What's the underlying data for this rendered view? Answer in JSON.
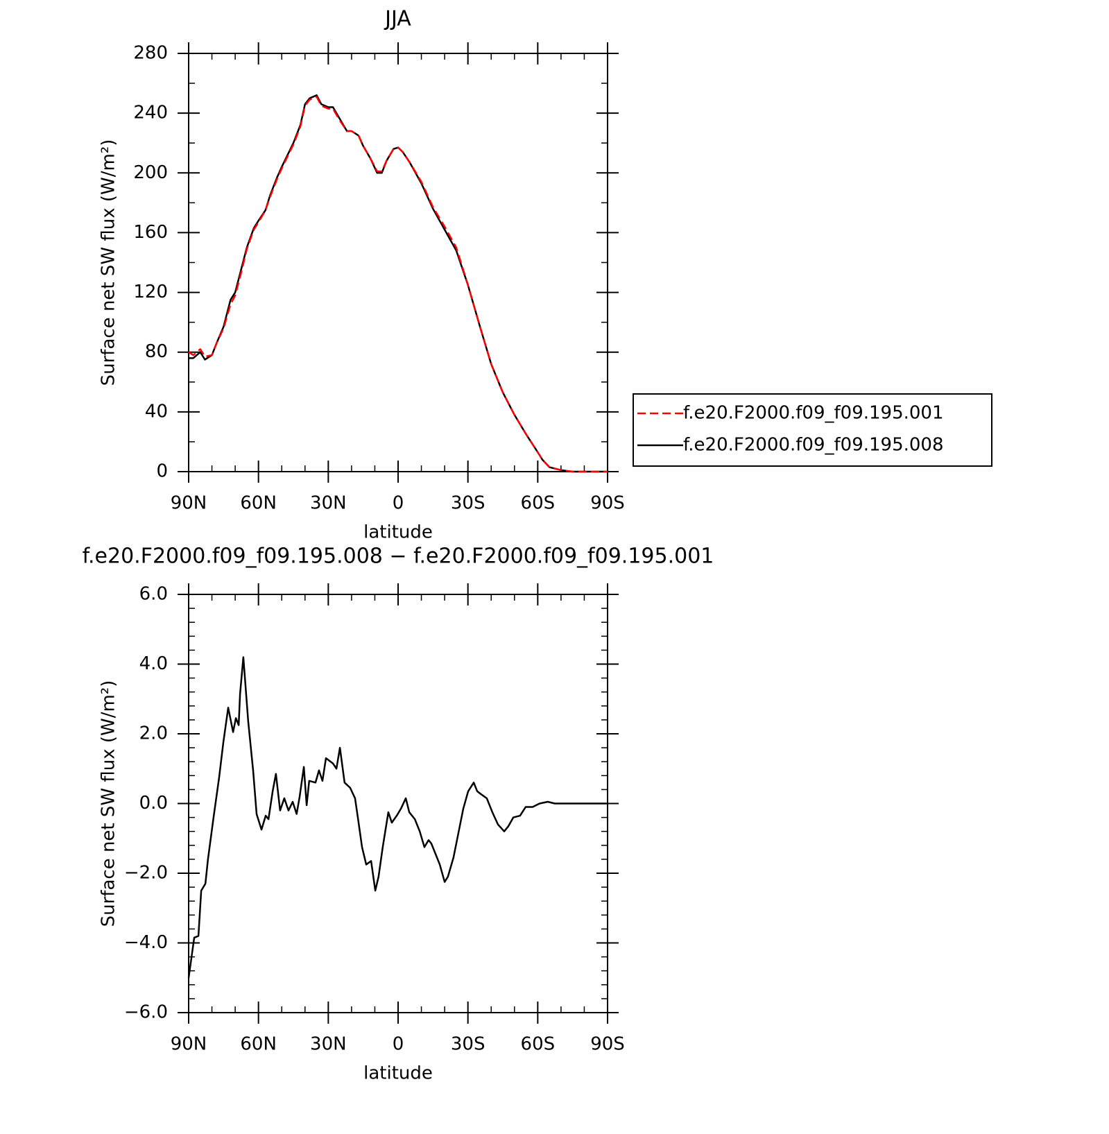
{
  "chart_data": [
    {
      "type": "line",
      "title": "JJA",
      "xlabel": "latitude",
      "ylabel": "Surface net SW flux (W/m²)",
      "x": [
        90,
        88,
        85,
        83,
        80,
        78,
        75,
        72,
        70,
        67,
        65,
        62,
        60,
        57,
        55,
        52,
        50,
        45,
        42,
        40,
        38,
        35,
        33,
        30,
        28,
        25,
        22,
        20,
        17,
        15,
        12,
        9,
        7,
        5,
        2,
        0,
        -2,
        -5,
        -10,
        -15,
        -20,
        -25,
        -30,
        -35,
        -40,
        -45,
        -50,
        -55,
        -60,
        -62,
        -65,
        -70,
        -75,
        -80,
        -85,
        -90
      ],
      "series": [
        {
          "name": "f.e20.F2000.f09_f09.195.001",
          "color": "#ff0000",
          "linestyle": "dashed",
          "values": [
            80,
            78,
            82,
            77,
            78,
            86,
            96,
            112,
            118,
            136,
            149,
            162,
            167,
            175,
            184,
            196,
            203,
            219,
            231,
            245,
            249,
            251,
            245,
            243,
            243,
            235,
            228,
            228,
            225,
            218,
            210,
            201,
            201,
            208,
            216,
            217,
            214,
            207,
            194,
            177,
            164,
            150,
            125,
            98,
            72,
            53,
            38,
            25,
            13,
            8,
            3,
            1,
            0,
            0,
            0,
            0
          ]
        },
        {
          "name": "f.e20.F2000.f09_f09.195.008",
          "color": "#000000",
          "linestyle": "solid",
          "values": [
            76,
            76,
            80,
            75,
            78,
            86,
            97,
            115,
            120,
            138,
            150,
            163,
            168,
            175,
            185,
            197,
            204,
            220,
            232,
            246,
            250,
            252,
            246,
            244,
            244,
            236,
            228,
            228,
            225,
            218,
            210,
            200,
            200,
            208,
            216,
            217,
            214,
            207,
            193,
            176,
            162,
            148,
            125,
            98,
            72,
            53,
            38,
            25,
            13,
            8,
            3,
            1,
            0,
            0,
            0,
            0
          ]
        }
      ],
      "xlim": [
        90,
        -90
      ],
      "xticks": [
        {
          "value": 90,
          "label": "90N"
        },
        {
          "value": 60,
          "label": "60N"
        },
        {
          "value": 30,
          "label": "30N"
        },
        0,
        {
          "value": -30,
          "label": "30S"
        },
        {
          "value": -60,
          "label": "60S"
        },
        {
          "value": -90,
          "label": "90S"
        }
      ],
      "ylim": [
        0,
        280
      ],
      "yticks": [
        0,
        40,
        80,
        120,
        160,
        200,
        240,
        280
      ],
      "legend": "right"
    },
    {
      "type": "line",
      "title": "f.e20.F2000.f09_f09.195.008 − f.e20.F2000.f09_f09.195.001",
      "xlabel": "latitude",
      "ylabel": "Surface net SW flux (W/m²)",
      "x": [
        90,
        87.6,
        85.8,
        84.6,
        82.8,
        81.7,
        79.3,
        76.9,
        75.1,
        73,
        70.9,
        69.7,
        68.5,
        67.9,
        66.5,
        64.4,
        62.3,
        60.8,
        58.7,
        56.9,
        55.7,
        53.9,
        52.5,
        50.7,
        48.9,
        47.1,
        45.3,
        43.6,
        42.3,
        40.5,
        39.3,
        38.2,
        35.5,
        34,
        32.5,
        31,
        28,
        26.5,
        25,
        23,
        20.6,
        18.5,
        17.3,
        15.5,
        13.7,
        11.6,
        9.8,
        8.4,
        6.6,
        4.2,
        2.7,
        0.6,
        -1.2,
        -3.3,
        -4.8,
        -7.2,
        -9.3,
        -11.3,
        -13.1,
        -14.3,
        -16.1,
        -17.9,
        -20,
        -21.4,
        -23.8,
        -26.2,
        -28,
        -30.1,
        -32.5,
        -34,
        -36,
        -38.1,
        -40.5,
        -42.9,
        -45.6,
        -47.4,
        -49.5,
        -52.4,
        -54.8,
        -57.8,
        -60.8,
        -64.3,
        -67.3,
        -90
      ],
      "values": [
        -5.0,
        -3.85,
        -3.8,
        -2.5,
        -2.3,
        -1.6,
        -0.4,
        0.75,
        1.75,
        2.75,
        2.05,
        2.45,
        2.25,
        3.15,
        4.2,
        2.35,
        0.95,
        -0.3,
        -0.75,
        -0.35,
        -0.45,
        0.35,
        0.85,
        -0.2,
        0.15,
        -0.2,
        0.05,
        -0.3,
        0.2,
        1.05,
        -0.05,
        0.65,
        0.6,
        0.95,
        0.65,
        1.3,
        1.15,
        1.0,
        1.6,
        0.6,
        0.45,
        0.15,
        -0.4,
        -1.25,
        -1.75,
        -1.65,
        -2.5,
        -2.1,
        -1.25,
        -0.25,
        -0.55,
        -0.35,
        -0.15,
        0.15,
        -0.25,
        -0.45,
        -0.8,
        -1.25,
        -1.05,
        -1.15,
        -1.45,
        -1.75,
        -2.25,
        -2.1,
        -1.55,
        -0.75,
        -0.15,
        0.35,
        0.6,
        0.35,
        0.25,
        0.15,
        -0.25,
        -0.6,
        -0.8,
        -0.65,
        -0.4,
        -0.35,
        -0.1,
        -0.1,
        0,
        0.05,
        0,
        0
      ],
      "color": "#000000",
      "xlim": [
        90,
        -90
      ],
      "xticks": [
        {
          "value": 90,
          "label": "90N"
        },
        {
          "value": 60,
          "label": "60N"
        },
        {
          "value": 30,
          "label": "30N"
        },
        0,
        {
          "value": -30,
          "label": "30S"
        },
        {
          "value": -60,
          "label": "60S"
        },
        {
          "value": -90,
          "label": "90S"
        }
      ],
      "ylim": [
        -6,
        6
      ],
      "yticks": [
        {
          "value": -6,
          "label": "−6.0"
        },
        {
          "value": -4,
          "label": "−4.0"
        },
        {
          "value": -2,
          "label": "−2.0"
        },
        {
          "value": 0,
          "label": "0.0"
        },
        {
          "value": 2,
          "label": "2.0"
        },
        {
          "value": 4,
          "label": "4.0"
        },
        {
          "value": 6,
          "label": "6.0"
        }
      ]
    }
  ]
}
